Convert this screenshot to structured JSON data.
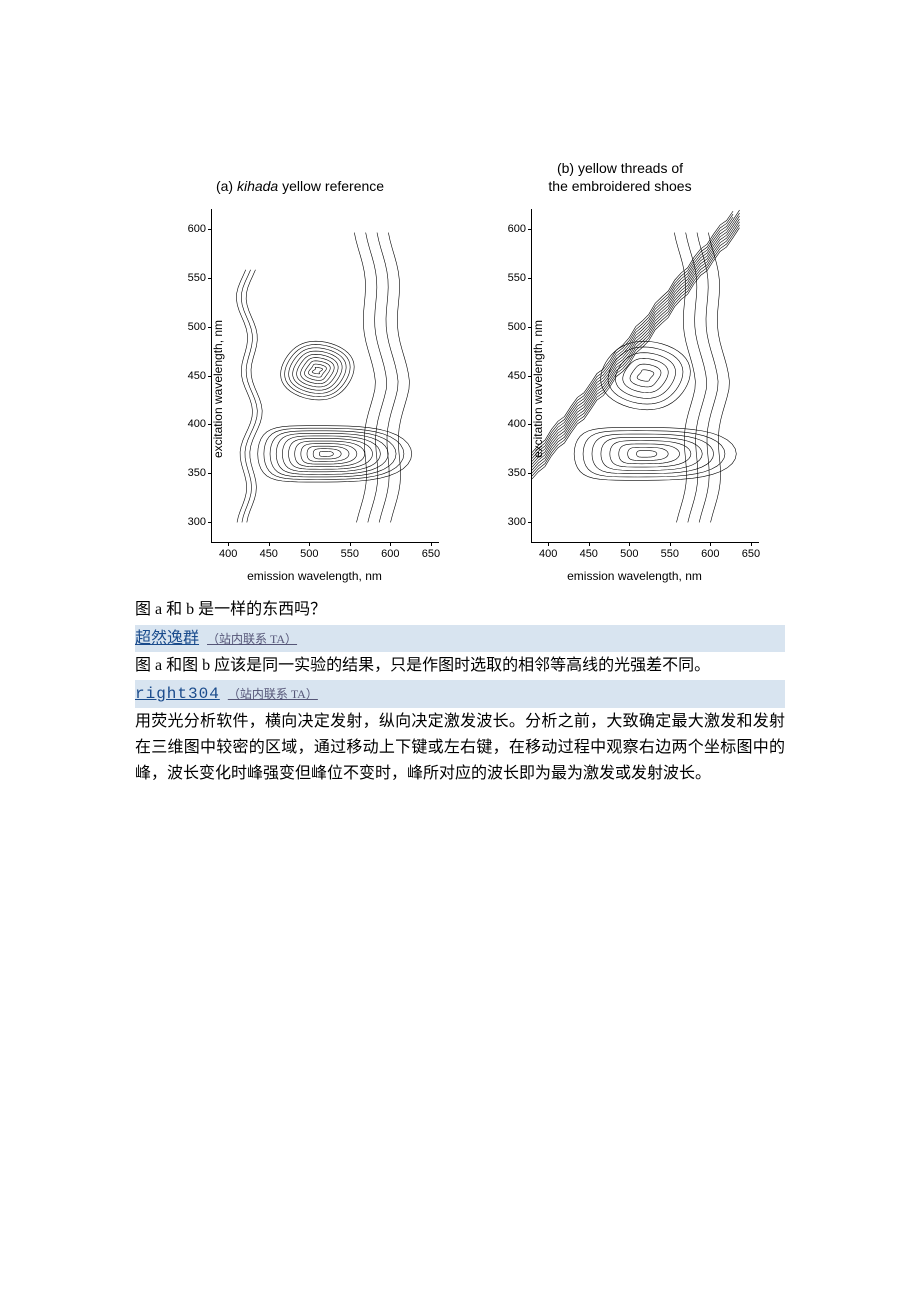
{
  "figure": {
    "a": {
      "title_prefix": "(a) ",
      "title_italic": "kihada",
      "title_suffix": " yellow reference"
    },
    "b": {
      "title_line1": "(b) yellow threads of",
      "title_line2": "the embroidered shoes"
    },
    "axes": {
      "ylabel": "excitation wavelength, nm",
      "xlabel": "emission wavelength, nm",
      "yticks": [
        300,
        350,
        400,
        450,
        500,
        550,
        600
      ],
      "xticks": [
        400,
        450,
        500,
        550,
        600,
        650
      ],
      "ylim": [
        280,
        620
      ],
      "xlim": [
        380,
        660
      ]
    }
  },
  "text": {
    "question": "图 a 和 b 是一样的东西吗？",
    "user1": {
      "name": "超然逸群",
      "contact": "（站内联系 TA）"
    },
    "answer1": "图 a 和图 b 应该是同一实验的结果，只是作图时选取的相邻等高线的光强差不同。",
    "user2": {
      "name": "right304",
      "contact": "（站内联系 TA）"
    },
    "answer2": "用荧光分析软件，横向决定发射，纵向决定激发波长。分析之前，大致确定最大激发和发射在三维图中较密的区域，通过移动上下键或左右键，在移动过程中观察右边两个坐标图中的峰，波长变化时峰强变但峰位不变时，峰所对应的波长即为最为激发或发射波长。"
  },
  "chart_style": {
    "type": "contour",
    "stroke": "#000000",
    "stroke_width": 0.6,
    "background": "#ffffff",
    "axis_font": "Arial",
    "axis_fontsize": 12,
    "tick_fontsize": 11,
    "plot_a": {
      "diagonal_band": {
        "present": false
      },
      "contour_centers": [
        {
          "cx_em": 510,
          "cy_ex": 455,
          "rings": 9,
          "rw": 45,
          "rh": 30,
          "shape": "oval"
        },
        {
          "cx_em": 520,
          "cy_ex": 370,
          "rings": 11,
          "rw": 95,
          "rh": 32,
          "shape": "wide"
        }
      ],
      "left_ridge": {
        "x_em": 420,
        "y1_ex": 300,
        "y2_ex": 560
      }
    },
    "plot_b": {
      "diagonal_band": {
        "present": true,
        "offset_nm": 20,
        "line_count": 10
      },
      "contour_centers": [
        {
          "cx_em": 520,
          "cy_ex": 450,
          "rings": 6,
          "rw": 55,
          "rh": 35,
          "shape": "oval"
        },
        {
          "cx_em": 520,
          "cy_ex": 370,
          "rings": 8,
          "rw": 100,
          "rh": 30,
          "shape": "wide"
        }
      ]
    }
  }
}
